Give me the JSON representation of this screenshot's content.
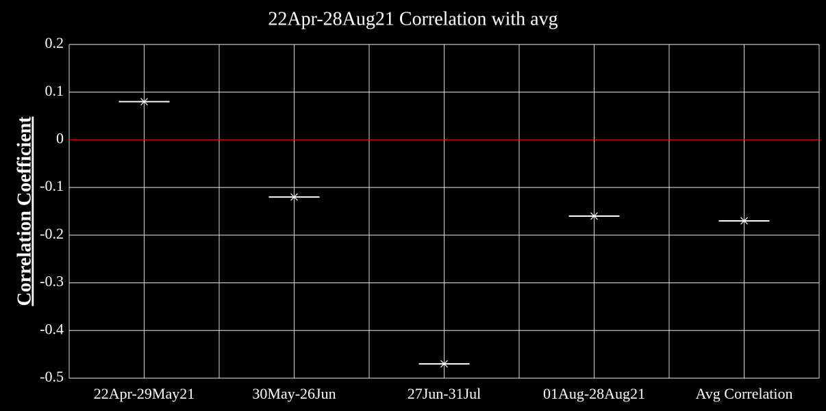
{
  "chart_data": {
    "type": "scatter",
    "title": "22Apr-28Aug21  Correlation with avg",
    "y_label": "Correlation Coefficient",
    "categories": [
      "22Apr-29May21",
      "30May-26Jun",
      "27Jun-31Jul",
      "01Aug-28Aug21",
      "Avg Correlation"
    ],
    "values": [
      0.08,
      -0.12,
      -0.47,
      -0.16,
      -0.17
    ],
    "color": "#ffffff",
    "zero_line_color": "#ff0000",
    "ylim": [
      -0.5,
      0.2
    ],
    "yticks": [
      -0.5,
      -0.4,
      -0.3,
      -0.2,
      -0.1,
      0,
      0.1,
      0.2
    ],
    "grid": true
  }
}
